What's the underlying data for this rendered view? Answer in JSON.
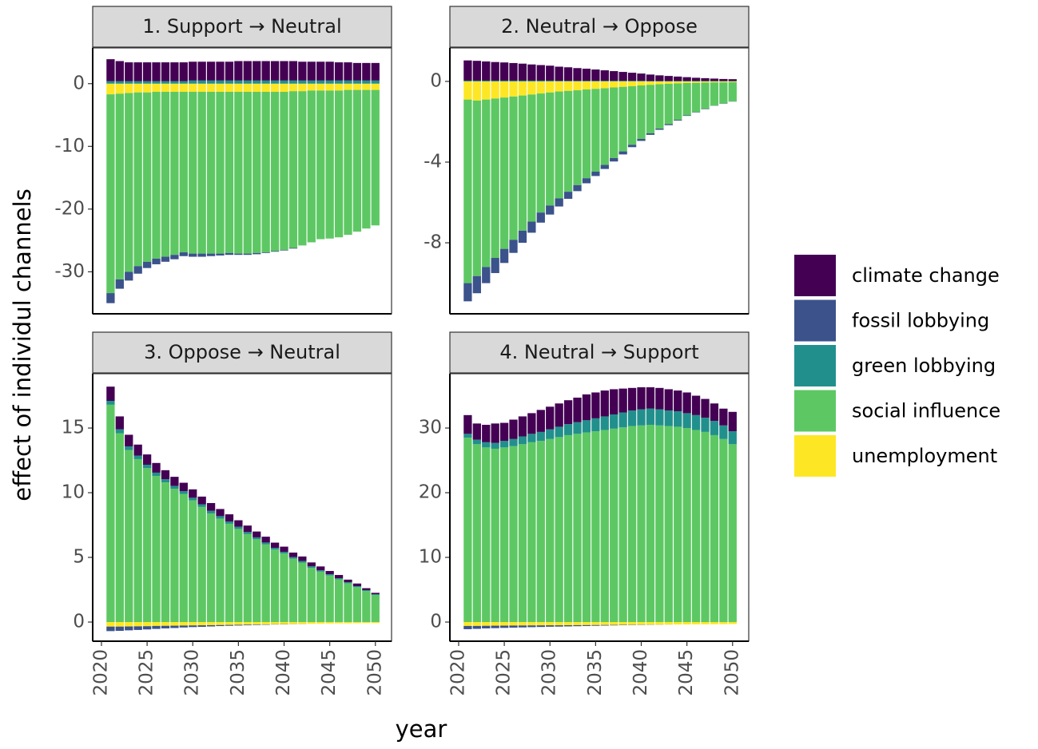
{
  "chart_data": [
    {
      "type": "bar",
      "title": "1. Support → Neutral",
      "x_label": "year",
      "y_label": "effect of individul channels",
      "x": [
        2021,
        2022,
        2023,
        2024,
        2025,
        2026,
        2027,
        2028,
        2029,
        2030,
        2031,
        2032,
        2033,
        2034,
        2035,
        2036,
        2037,
        2038,
        2039,
        2040,
        2041,
        2042,
        2043,
        2044,
        2045,
        2046,
        2047,
        2048,
        2049,
        2050
      ],
      "xlim": [
        2019.04,
        2051.77
      ],
      "ylim": [
        -36.7,
        5.7
      ],
      "yticks": [
        -30,
        -20,
        -10,
        0
      ],
      "series": [
        {
          "name": "climate change",
          "color": "#440154",
          "values": [
            3.5,
            3.2,
            3.0,
            3.0,
            3.0,
            3.0,
            3.0,
            3.0,
            3.0,
            3.0,
            3.0,
            3.0,
            3.0,
            3.0,
            3.1,
            3.1,
            3.1,
            3.1,
            3.1,
            3.1,
            3.1,
            3.0,
            3.0,
            3.0,
            3.0,
            2.9,
            2.9,
            2.8,
            2.8,
            2.8
          ]
        },
        {
          "name": "fossil lobbying",
          "color": "#3b528b",
          "values": [
            -1.6,
            -1.5,
            -1.4,
            -1.2,
            -1.0,
            -0.9,
            -0.8,
            -0.7,
            -0.6,
            -0.5,
            -0.5,
            -0.4,
            -0.3,
            -0.3,
            -0.2,
            -0.2,
            -0.2,
            -0.1,
            -0.1,
            -0.1,
            -0.1,
            0,
            0,
            0,
            0,
            0,
            0,
            0,
            0,
            0
          ]
        },
        {
          "name": "green lobbying",
          "color": "#21908c",
          "values": [
            0.4,
            0.4,
            0.4,
            0.4,
            0.4,
            0.4,
            0.4,
            0.4,
            0.4,
            0.5,
            0.5,
            0.5,
            0.5,
            0.5,
            0.5,
            0.5,
            0.5,
            0.5,
            0.5,
            0.5,
            0.5,
            0.5,
            0.5,
            0.5,
            0.5,
            0.5,
            0.5,
            0.5,
            0.5,
            0.5
          ]
        },
        {
          "name": "social influence",
          "color": "#5dc863",
          "values": [
            -31.7,
            -29.6,
            -28.5,
            -27.7,
            -27.0,
            -26.6,
            -26.3,
            -26.0,
            -25.6,
            -25.8,
            -25.8,
            -25.8,
            -25.8,
            -25.7,
            -25.8,
            -25.8,
            -25.7,
            -25.6,
            -25.4,
            -25.2,
            -25.0,
            -24.6,
            -24.2,
            -23.7,
            -23.6,
            -23.4,
            -23.1,
            -22.6,
            -22.1,
            -21.6
          ]
        },
        {
          "name": "unemployment",
          "color": "#fde725",
          "values": [
            -1.7,
            -1.6,
            -1.5,
            -1.4,
            -1.4,
            -1.3,
            -1.3,
            -1.3,
            -1.3,
            -1.3,
            -1.3,
            -1.3,
            -1.3,
            -1.3,
            -1.3,
            -1.3,
            -1.3,
            -1.3,
            -1.3,
            -1.3,
            -1.2,
            -1.2,
            -1.1,
            -1.1,
            -1.1,
            -1.1,
            -1.0,
            -1.0,
            -1.0,
            -1.0
          ]
        }
      ]
    },
    {
      "type": "bar",
      "title": "2. Neutral → Oppose",
      "x": [
        2021,
        2022,
        2023,
        2024,
        2025,
        2026,
        2027,
        2028,
        2029,
        2030,
        2031,
        2032,
        2033,
        2034,
        2035,
        2036,
        2037,
        2038,
        2039,
        2040,
        2041,
        2042,
        2043,
        2044,
        2045,
        2046,
        2047,
        2048,
        2049,
        2050
      ],
      "xlim": [
        2019.04,
        2051.77
      ],
      "ylim": [
        -11.52,
        1.66
      ],
      "yticks": [
        -8,
        -4,
        0
      ],
      "series": [
        {
          "name": "climate change",
          "color": "#440154",
          "values": [
            1.0,
            0.98,
            0.95,
            0.92,
            0.9,
            0.87,
            0.84,
            0.8,
            0.77,
            0.74,
            0.7,
            0.67,
            0.63,
            0.6,
            0.56,
            0.52,
            0.48,
            0.44,
            0.4,
            0.36,
            0.32,
            0.28,
            0.25,
            0.22,
            0.19,
            0.16,
            0.14,
            0.12,
            0.1,
            0.09
          ]
        },
        {
          "name": "fossil lobbying",
          "color": "#3b528b",
          "values": [
            -0.9,
            -0.85,
            -0.8,
            -0.75,
            -0.7,
            -0.65,
            -0.6,
            -0.55,
            -0.5,
            -0.45,
            -0.4,
            -0.35,
            -0.3,
            -0.25,
            -0.22,
            -0.2,
            -0.17,
            -0.15,
            -0.12,
            -0.1,
            -0.08,
            -0.06,
            -0.05,
            -0.04,
            -0.03,
            -0.02,
            -0.02,
            -0.01,
            -0.01,
            -0.01
          ]
        },
        {
          "name": "green lobbying",
          "color": "#21908c",
          "values": [
            0.04,
            0.04,
            0.04,
            0.04,
            0.04,
            0.04,
            0.04,
            0.04,
            0.04,
            0.04,
            0.03,
            0.03,
            0.03,
            0.03,
            0.03,
            0.03,
            0.03,
            0.03,
            0.03,
            0.03,
            0.02,
            0.02,
            0.02,
            0.02,
            0.02,
            0.02,
            0.02,
            0.02,
            0.02,
            0.02
          ]
        },
        {
          "name": "social influence",
          "color": "#5dc863",
          "values": [
            -9.1,
            -8.7,
            -8.3,
            -7.9,
            -7.5,
            -7.1,
            -6.7,
            -6.3,
            -5.9,
            -5.6,
            -5.3,
            -5.0,
            -4.7,
            -4.4,
            -4.1,
            -3.8,
            -3.5,
            -3.2,
            -2.9,
            -2.65,
            -2.4,
            -2.2,
            -2.0,
            -1.8,
            -1.6,
            -1.45,
            -1.3,
            -1.15,
            -1.05,
            -0.95
          ]
        },
        {
          "name": "unemployment",
          "color": "#fde725",
          "values": [
            -0.9,
            -0.95,
            -0.9,
            -0.85,
            -0.8,
            -0.75,
            -0.7,
            -0.65,
            -0.6,
            -0.55,
            -0.5,
            -0.47,
            -0.44,
            -0.4,
            -0.37,
            -0.34,
            -0.3,
            -0.27,
            -0.24,
            -0.2,
            -0.17,
            -0.14,
            -0.12,
            -0.1,
            -0.08,
            -0.07,
            -0.06,
            -0.05,
            -0.05,
            -0.04
          ]
        }
      ]
    },
    {
      "type": "bar",
      "title": "3. Oppose → Neutral",
      "x": [
        2021,
        2022,
        2023,
        2024,
        2025,
        2026,
        2027,
        2028,
        2029,
        2030,
        2031,
        2032,
        2033,
        2034,
        2035,
        2036,
        2037,
        2038,
        2039,
        2040,
        2041,
        2042,
        2043,
        2044,
        2045,
        2046,
        2047,
        2048,
        2049,
        2050
      ],
      "xlim": [
        2019.04,
        2051.77
      ],
      "xticks": [
        2020,
        2025,
        2030,
        2035,
        2040,
        2045,
        2050
      ],
      "ylim": [
        -1.48,
        19.2
      ],
      "yticks": [
        0,
        5,
        10,
        15
      ],
      "series": [
        {
          "name": "climate change",
          "color": "#440154",
          "values": [
            1.1,
            1.0,
            0.9,
            0.85,
            0.8,
            0.75,
            0.7,
            0.7,
            0.65,
            0.65,
            0.6,
            0.6,
            0.55,
            0.55,
            0.5,
            0.5,
            0.45,
            0.45,
            0.4,
            0.4,
            0.35,
            0.35,
            0.3,
            0.3,
            0.25,
            0.25,
            0.2,
            0.2,
            0.15,
            0.1
          ]
        },
        {
          "name": "fossil lobbying",
          "color": "#3b528b",
          "values": [
            -0.35,
            -0.33,
            -0.3,
            -0.28,
            -0.25,
            -0.23,
            -0.2,
            -0.18,
            -0.15,
            -0.13,
            -0.12,
            -0.1,
            -0.08,
            -0.07,
            -0.06,
            -0.05,
            -0.04,
            -0.03,
            -0.02,
            -0.02,
            -0.01,
            -0.01,
            0,
            0,
            0,
            0,
            0,
            0,
            0,
            0
          ]
        },
        {
          "name": "green lobbying",
          "color": "#21908c",
          "values": [
            0.3,
            0.3,
            0.28,
            0.27,
            0.26,
            0.25,
            0.24,
            0.23,
            0.22,
            0.21,
            0.2,
            0.2,
            0.19,
            0.18,
            0.17,
            0.16,
            0.15,
            0.15,
            0.14,
            0.13,
            0.12,
            0.12,
            0.11,
            0.1,
            0.1,
            0.09,
            0.08,
            0.08,
            0.07,
            0.06
          ]
        },
        {
          "name": "social influence",
          "color": "#5dc863",
          "values": [
            16.8,
            14.6,
            13.3,
            12.6,
            11.9,
            11.3,
            10.8,
            10.3,
            9.9,
            9.4,
            8.9,
            8.4,
            8.0,
            7.6,
            7.2,
            6.8,
            6.4,
            6.0,
            5.6,
            5.3,
            4.9,
            4.6,
            4.2,
            3.9,
            3.6,
            3.3,
            3.0,
            2.7,
            2.4,
            2.1
          ]
        },
        {
          "name": "unemployment",
          "color": "#fde725",
          "values": [
            -0.35,
            -0.35,
            -0.34,
            -0.33,
            -0.32,
            -0.3,
            -0.29,
            -0.28,
            -0.27,
            -0.26,
            -0.25,
            -0.24,
            -0.23,
            -0.22,
            -0.21,
            -0.2,
            -0.19,
            -0.18,
            -0.17,
            -0.16,
            -0.15,
            -0.14,
            -0.13,
            -0.12,
            -0.11,
            -0.1,
            -0.1,
            -0.09,
            -0.08,
            -0.08
          ]
        }
      ]
    },
    {
      "type": "bar",
      "title": "4. Neutral → Support",
      "x": [
        2021,
        2022,
        2023,
        2024,
        2025,
        2026,
        2027,
        2028,
        2029,
        2030,
        2031,
        2032,
        2033,
        2034,
        2035,
        2036,
        2037,
        2038,
        2039,
        2040,
        2041,
        2042,
        2043,
        2044,
        2045,
        2046,
        2047,
        2048,
        2049,
        2050
      ],
      "xlim": [
        2019.04,
        2051.77
      ],
      "xticks": [
        2020,
        2025,
        2030,
        2035,
        2040,
        2045,
        2050
      ],
      "ylim": [
        -2.96,
        38.4
      ],
      "yticks": [
        0,
        10,
        20,
        30
      ],
      "series": [
        {
          "name": "climate change",
          "color": "#440154",
          "values": [
            2.9,
            2.5,
            2.7,
            3.0,
            2.8,
            3.0,
            3.1,
            3.2,
            3.4,
            3.5,
            3.6,
            3.7,
            3.8,
            4.0,
            4.0,
            4.0,
            3.9,
            3.7,
            3.5,
            3.4,
            3.3,
            3.3,
            3.3,
            3.2,
            3.2,
            3.0,
            2.9,
            2.7,
            2.6,
            3.0
          ]
        },
        {
          "name": "fossil lobbying",
          "color": "#3b528b",
          "values": [
            -0.5,
            -0.45,
            -0.4,
            -0.38,
            -0.35,
            -0.32,
            -0.3,
            -0.27,
            -0.25,
            -0.22,
            -0.2,
            -0.18,
            -0.16,
            -0.14,
            -0.12,
            -0.1,
            -0.08,
            -0.06,
            -0.05,
            -0.04,
            -0.03,
            -0.02,
            -0.01,
            0,
            0,
            0,
            0,
            0,
            0,
            0
          ]
        },
        {
          "name": "green lobbying",
          "color": "#21908c",
          "values": [
            0.6,
            0.7,
            0.8,
            0.9,
            1.0,
            1.1,
            1.2,
            1.3,
            1.4,
            1.5,
            1.6,
            1.7,
            1.8,
            1.9,
            2.0,
            2.1,
            2.2,
            2.3,
            2.4,
            2.5,
            2.5,
            2.5,
            2.4,
            2.4,
            2.3,
            2.3,
            2.2,
            2.2,
            2.1,
            2.0
          ]
        },
        {
          "name": "social influence",
          "color": "#5dc863",
          "values": [
            28.5,
            27.5,
            27.0,
            26.8,
            27.0,
            27.2,
            27.5,
            27.8,
            28.0,
            28.3,
            28.6,
            28.9,
            29.1,
            29.3,
            29.5,
            29.7,
            29.9,
            30.1,
            30.3,
            30.4,
            30.5,
            30.4,
            30.3,
            30.2,
            30.0,
            29.7,
            29.4,
            28.9,
            28.3,
            27.5
          ]
        },
        {
          "name": "unemployment",
          "color": "#fde725",
          "values": [
            -0.6,
            -0.6,
            -0.58,
            -0.56,
            -0.55,
            -0.54,
            -0.53,
            -0.52,
            -0.51,
            -0.5,
            -0.5,
            -0.49,
            -0.48,
            -0.47,
            -0.46,
            -0.45,
            -0.44,
            -0.43,
            -0.42,
            -0.41,
            -0.4,
            -0.39,
            -0.38,
            -0.37,
            -0.36,
            -0.35,
            -0.34,
            -0.33,
            -0.32,
            -0.3
          ]
        }
      ]
    }
  ]
}
